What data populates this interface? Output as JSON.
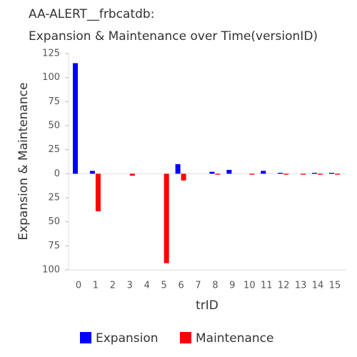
{
  "chart_data": {
    "type": "bar",
    "title": "AA-ALERT__frbcatdb:",
    "subtitle": "Expansion & Maintenance over Time(versionID)",
    "x_label": "trID",
    "y_label": "Expansion & Maintenance",
    "categories": [
      "0",
      "1",
      "2",
      "3",
      "4",
      "5",
      "6",
      "7",
      "8",
      "9",
      "10",
      "11",
      "12",
      "13",
      "14",
      "15"
    ],
    "series": [
      {
        "name": "Expansion",
        "color": "#0000ff",
        "values": [
          115,
          3,
          0,
          0,
          0,
          0,
          10,
          0,
          2,
          4,
          0,
          3,
          1,
          0,
          1,
          1
        ]
      },
      {
        "name": "Maintenance",
        "color": "#ff0000",
        "values": [
          0,
          -39,
          0,
          -2,
          0,
          -93,
          -7,
          0,
          -1,
          0,
          -1,
          0,
          -1,
          -1,
          -1,
          -1
        ]
      }
    ],
    "ylim": [
      -100,
      125
    ],
    "yticks": [
      {
        "value": -100,
        "label": "100"
      },
      {
        "value": -75,
        "label": "75"
      },
      {
        "value": -50,
        "label": "50"
      },
      {
        "value": -25,
        "label": "25"
      },
      0,
      25,
      50,
      75,
      100,
      125
    ],
    "legend": "bottom"
  }
}
